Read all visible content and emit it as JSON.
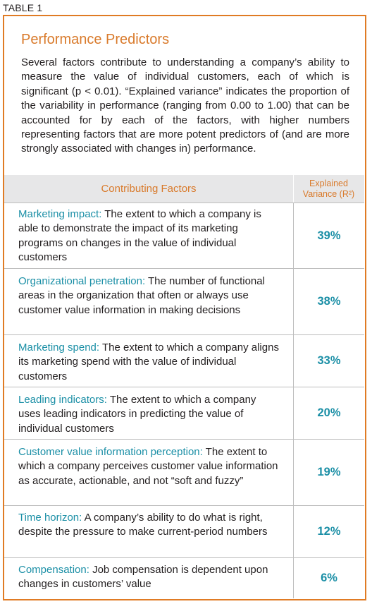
{
  "table_label": "TABLE 1",
  "title": "Performance Predictors",
  "intro": "Several factors contribute to understanding a company’s ability to measure the value of individual customers, each of which is significant (p < 0.01). “Explained variance” indicates the proportion of the variability in performance (ranging from 0.00 to 1.00) that can be accounted for by each of the factors, with higher numbers representing factors that are more potent predictors of (and are more strongly associated with changes in) performance.",
  "header": {
    "factors": "Contributing Factors",
    "variance_line1": "Explained",
    "variance_line2": "Variance (R²)"
  },
  "rows": [
    {
      "name": "Marketing impact:",
      "text": " The extent to which a company is able to demonstrate the impact of its marketing programs on changes in the value of individual customers",
      "value": "39%"
    },
    {
      "name": "Organizational penetration:",
      "text": " The number of functional areas in the organization that often or always use customer value information in making decisions",
      "value": "38%"
    },
    {
      "name": "Marketing spend:",
      "text": " The extent to which a company aligns its marketing spend with the value of individual customers",
      "value": "33%"
    },
    {
      "name": "Leading indicators:",
      "text": " The extent to which a company uses leading indicators in predicting the value of individual customers",
      "value": "20%"
    },
    {
      "name": "Customer value information perception:",
      "text": " The extent to which a company perceives customer value information as accurate, actionable, and not “soft and fuzzy”",
      "value": "19%"
    },
    {
      "name": "Time horizon:",
      "text": " A company’s ability to do what is right, despite the pressure to make current-period numbers",
      "value": "12%"
    },
    {
      "name": "Compensation:",
      "text": " Job compensation is dependent upon changes in customers’ value",
      "value": "6%"
    }
  ]
}
